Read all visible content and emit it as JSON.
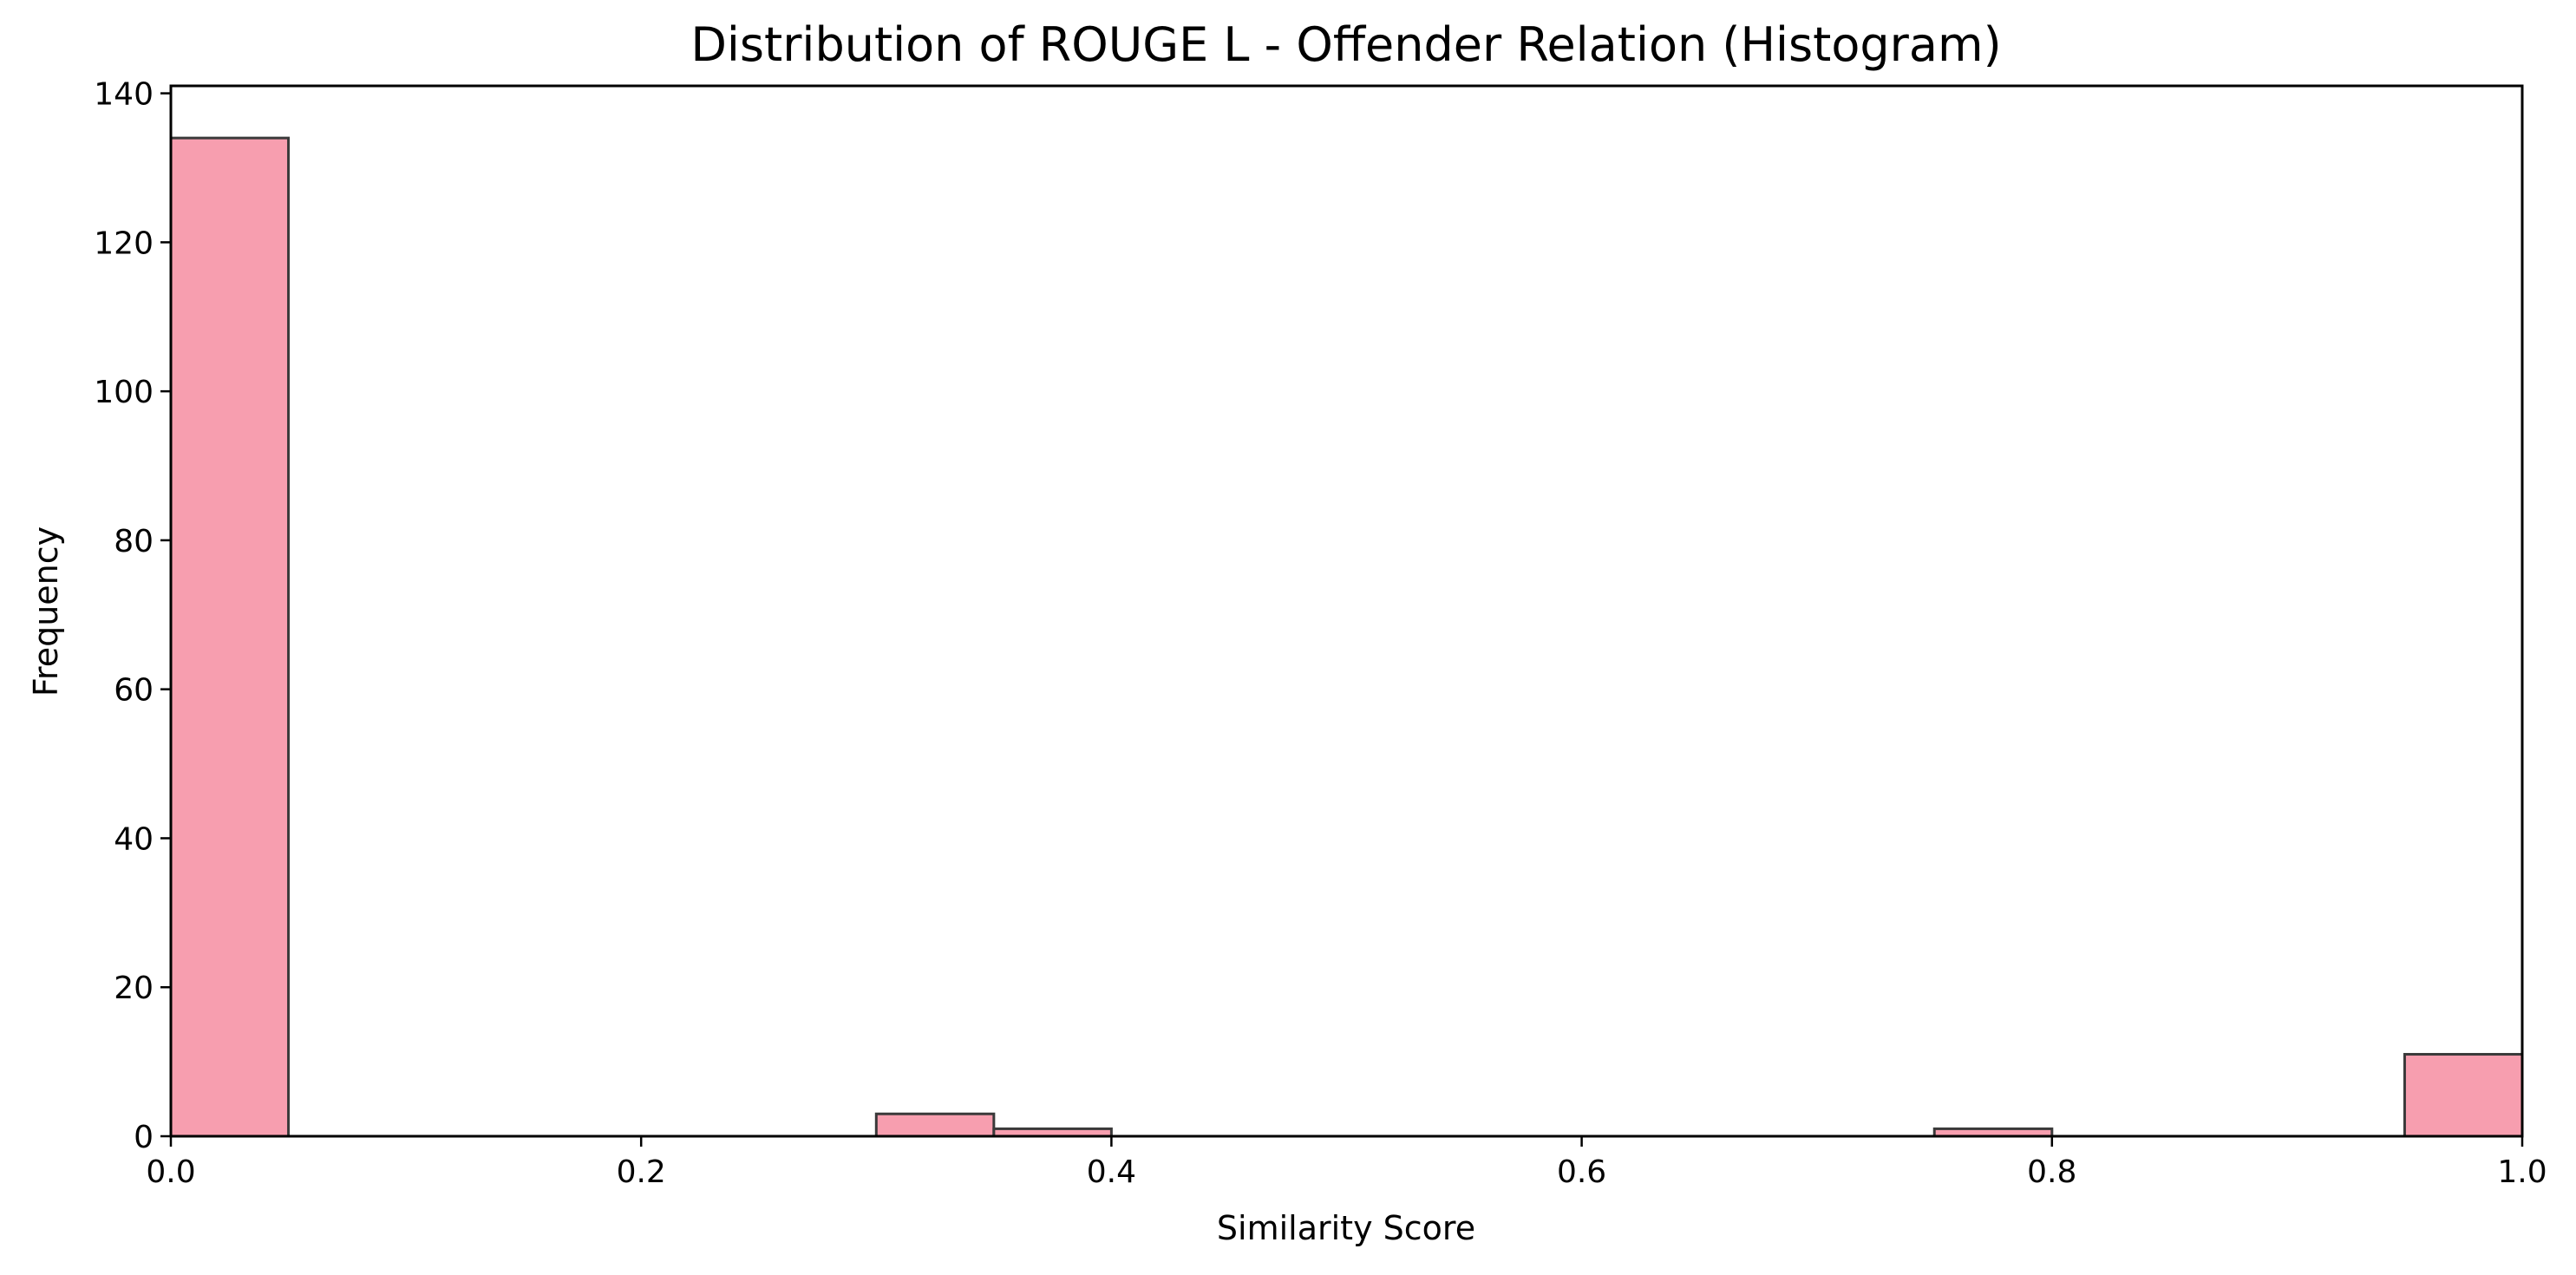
{
  "chart_data": {
    "type": "bar",
    "title": "Distribution of ROUGE L - Offender Relation (Histogram)",
    "xlabel": "Similarity Score",
    "ylabel": "Frequency",
    "xlim": [
      0.0,
      1.0
    ],
    "ylim": [
      0,
      141
    ],
    "bin_width": 0.05,
    "bins": [
      {
        "start": 0.0,
        "end": 0.05,
        "count": 134
      },
      {
        "start": 0.05,
        "end": 0.1,
        "count": 0
      },
      {
        "start": 0.1,
        "end": 0.15,
        "count": 0
      },
      {
        "start": 0.15,
        "end": 0.2,
        "count": 0
      },
      {
        "start": 0.2,
        "end": 0.25,
        "count": 0
      },
      {
        "start": 0.25,
        "end": 0.3,
        "count": 0
      },
      {
        "start": 0.3,
        "end": 0.35,
        "count": 3
      },
      {
        "start": 0.35,
        "end": 0.4,
        "count": 1
      },
      {
        "start": 0.4,
        "end": 0.45,
        "count": 0
      },
      {
        "start": 0.45,
        "end": 0.5,
        "count": 0
      },
      {
        "start": 0.5,
        "end": 0.55,
        "count": 0
      },
      {
        "start": 0.55,
        "end": 0.6,
        "count": 0
      },
      {
        "start": 0.6,
        "end": 0.65,
        "count": 0
      },
      {
        "start": 0.65,
        "end": 0.7,
        "count": 0
      },
      {
        "start": 0.7,
        "end": 0.75,
        "count": 0
      },
      {
        "start": 0.75,
        "end": 0.8,
        "count": 1
      },
      {
        "start": 0.8,
        "end": 0.85,
        "count": 0
      },
      {
        "start": 0.85,
        "end": 0.9,
        "count": 0
      },
      {
        "start": 0.9,
        "end": 0.95,
        "count": 0
      },
      {
        "start": 0.95,
        "end": 1.0,
        "count": 11
      }
    ],
    "x_ticks": [
      {
        "value": 0.0,
        "label": "0.0"
      },
      {
        "value": 0.2,
        "label": "0.2"
      },
      {
        "value": 0.4,
        "label": "0.4"
      },
      {
        "value": 0.6,
        "label": "0.6"
      },
      {
        "value": 0.8,
        "label": "0.8"
      },
      {
        "value": 1.0,
        "label": "1.0"
      }
    ],
    "y_ticks": [
      {
        "value": 0,
        "label": "0"
      },
      {
        "value": 20,
        "label": "20"
      },
      {
        "value": 40,
        "label": "40"
      },
      {
        "value": 60,
        "label": "60"
      },
      {
        "value": 80,
        "label": "80"
      },
      {
        "value": 100,
        "label": "100"
      },
      {
        "value": 120,
        "label": "120"
      },
      {
        "value": 140,
        "label": "140"
      }
    ],
    "grid": false,
    "legend": "none",
    "colors": {
      "bar_fill": "#f79eaf",
      "bar_edge": "#3a3a3a",
      "axis": "#000000"
    }
  }
}
